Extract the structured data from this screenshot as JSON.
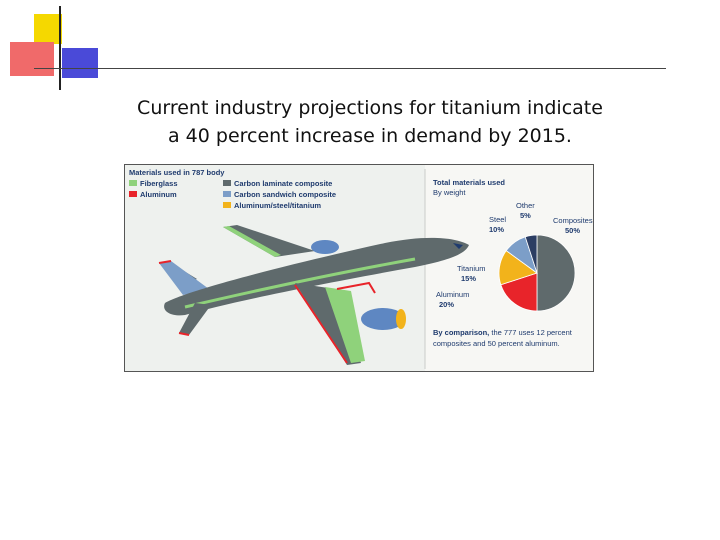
{
  "slide": {
    "title_line1": "Current industry projections for titanium indicate",
    "title_line2": "a 40 percent increase in demand by 2015."
  },
  "colors": {
    "deco_yellow": "#f5d800",
    "deco_red": "#f06a6a",
    "deco_blue": "#4a4ad8",
    "fuselage": "#5f6a6c",
    "fiberglass": "#8fd27b",
    "aluminum": "#e8242a",
    "carbon_laminate": "#5f6a6c",
    "carbon_sandwich": "#7c9ec8",
    "aluminum_steel_titanium": "#f2b31b",
    "engine": "#5e87c2"
  },
  "legend": {
    "title": "Materials used in 787 body",
    "items": [
      {
        "label": "Fiberglass",
        "color": "#8fd27b"
      },
      {
        "label": "Aluminum",
        "color": "#e8242a"
      },
      {
        "label": "Carbon laminate composite",
        "color": "#5f6a6c"
      },
      {
        "label": "Carbon sandwich composite",
        "color": "#7c9ec8"
      },
      {
        "label": "Aluminum/steel/titanium",
        "color": "#f2b31b"
      }
    ]
  },
  "chart_data": {
    "type": "pie",
    "title": "Total materials used",
    "subtitle": "By weight",
    "slices": [
      {
        "name": "Composites",
        "value": 50,
        "label": "50%",
        "color": "#5f6a6c"
      },
      {
        "name": "Aluminum",
        "value": 20,
        "label": "20%",
        "color": "#e8242a"
      },
      {
        "name": "Titanium",
        "value": 15,
        "label": "15%",
        "color": "#f2b31b"
      },
      {
        "name": "Steel",
        "value": 10,
        "label": "10%",
        "color": "#7c9ec8"
      },
      {
        "name": "Other",
        "value": 5,
        "label": "5%",
        "color": "#2c3e63"
      }
    ],
    "note_bold": "By comparison,",
    "note_line1": "the 777 uses 12 percent",
    "note_line2": "composites and 50 percent aluminum."
  }
}
